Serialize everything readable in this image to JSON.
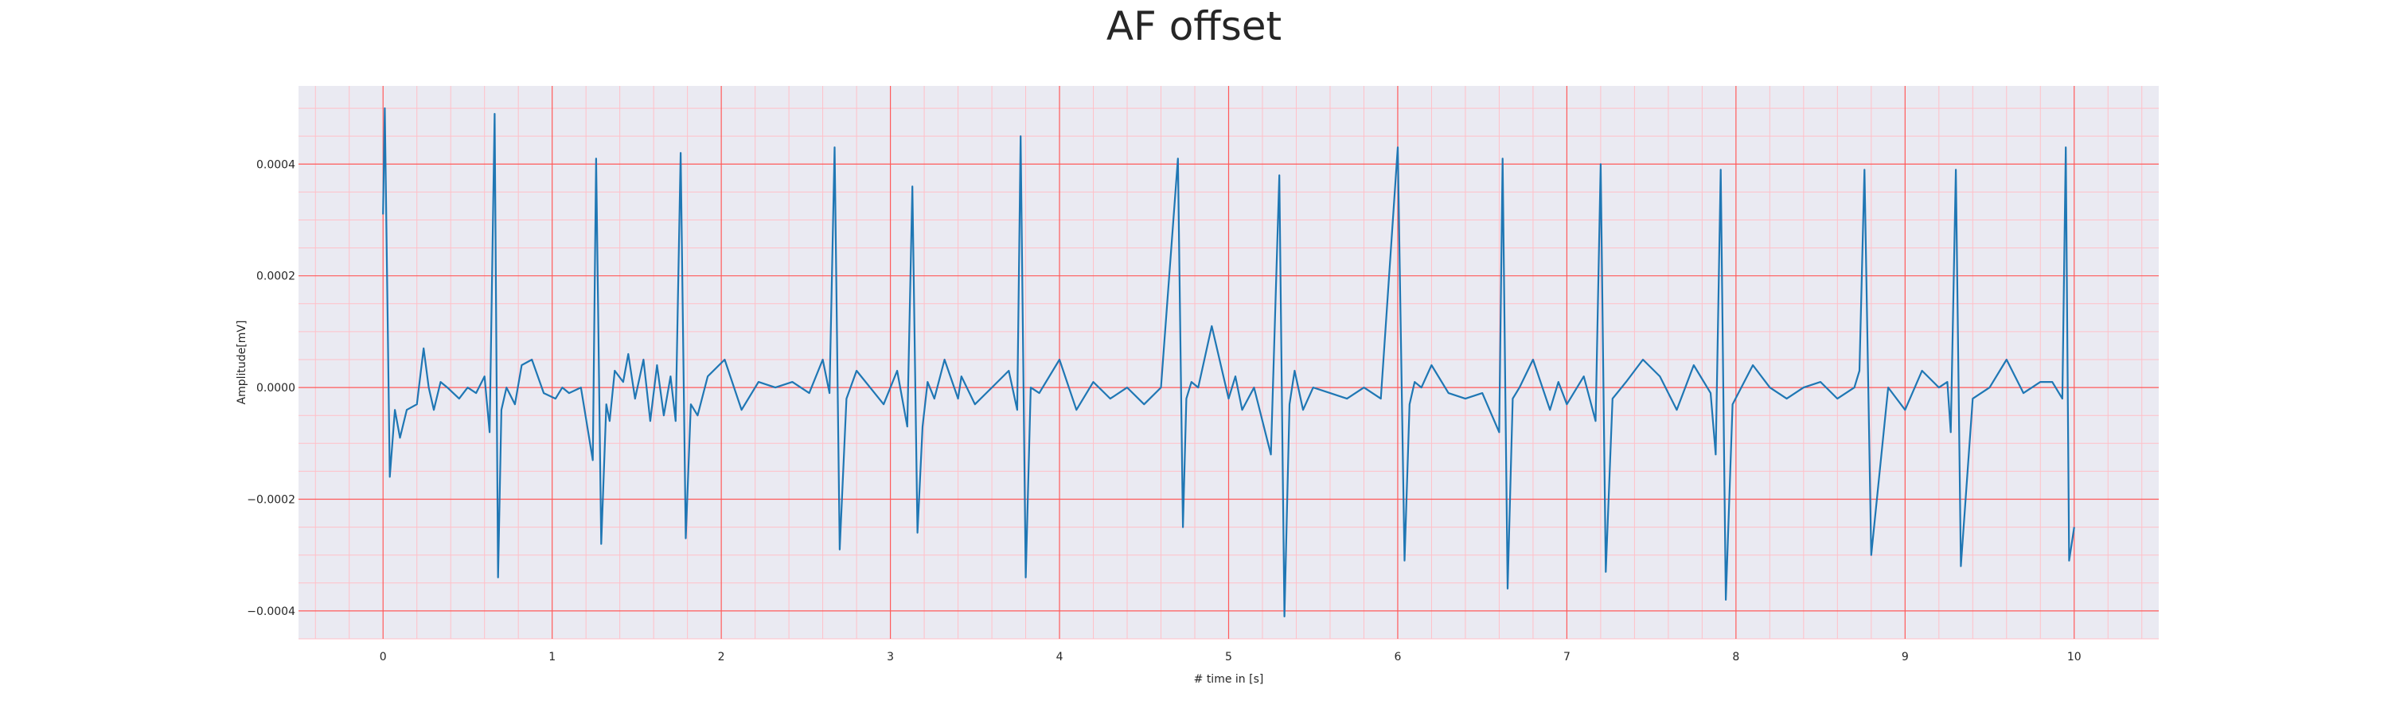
{
  "chart_data": {
    "type": "line",
    "title": "AF offset",
    "xlabel": "# time in [s]",
    "ylabel": "Amplitude[mV]",
    "xlim": [
      -0.5,
      10.5
    ],
    "ylim": [
      -0.00045,
      0.00054
    ],
    "xticks": [
      0,
      1,
      2,
      3,
      4,
      5,
      6,
      7,
      8,
      9,
      10
    ],
    "xtick_labels": [
      "0",
      "1",
      "2",
      "3",
      "4",
      "5",
      "6",
      "7",
      "8",
      "9",
      "10"
    ],
    "yticks": [
      -0.0004,
      -0.0002,
      0.0,
      0.0002,
      0.0004
    ],
    "ytick_labels": [
      "−0.0004",
      "−0.0002",
      "0.0000",
      "0.0002",
      "0.0004"
    ],
    "grid": {
      "major": true,
      "minor": true
    },
    "series": [
      {
        "x": [
          0,
          0.01,
          0.04,
          0.07,
          0.1,
          0.14,
          0.2,
          0.24,
          0.27,
          0.3,
          0.34,
          0.38,
          0.45,
          0.5,
          0.55,
          0.6,
          0.63,
          0.66,
          0.68,
          0.7,
          0.73,
          0.78,
          0.82,
          0.88,
          0.95,
          1.02,
          1.06,
          1.1,
          1.17,
          1.24,
          1.26,
          1.29,
          1.32,
          1.34,
          1.37,
          1.42,
          1.45,
          1.49,
          1.54,
          1.58,
          1.62,
          1.66,
          1.7,
          1.73,
          1.76,
          1.79,
          1.82,
          1.86,
          1.92,
          2.02,
          2.12,
          2.22,
          2.32,
          2.42,
          2.52,
          2.6,
          2.64,
          2.67,
          2.7,
          2.74,
          2.8,
          2.88,
          2.96,
          3.04,
          3.1,
          3.13,
          3.16,
          3.19,
          3.22,
          3.26,
          3.32,
          3.4,
          3.42,
          3.5,
          3.6,
          3.7,
          3.75,
          3.77,
          3.8,
          3.83,
          3.88,
          4.0,
          4.1,
          4.2,
          4.3,
          4.4,
          4.5,
          4.6,
          4.7,
          4.73,
          4.75,
          4.78,
          4.82,
          4.9,
          5.0,
          5.04,
          5.08,
          5.15,
          5.25,
          5.3,
          5.33,
          5.36,
          5.39,
          5.44,
          5.5,
          5.6,
          5.7,
          5.8,
          5.9,
          6.0,
          6.04,
          6.07,
          6.1,
          6.14,
          6.2,
          6.3,
          6.4,
          6.5,
          6.6,
          6.62,
          6.65,
          6.68,
          6.72,
          6.8,
          6.9,
          6.95,
          7.0,
          7.1,
          7.17,
          7.2,
          7.23,
          7.27,
          7.35,
          7.45,
          7.55,
          7.65,
          7.75,
          7.85,
          7.88,
          7.91,
          7.94,
          7.98,
          8.1,
          8.2,
          8.3,
          8.4,
          8.5,
          8.6,
          8.7,
          8.73,
          8.76,
          8.8,
          8.9,
          9.0,
          9.1,
          9.2,
          9.25,
          9.27,
          9.3,
          9.33,
          9.4,
          9.5,
          9.6,
          9.7,
          9.8,
          9.87,
          9.93,
          9.95,
          9.97,
          10.0
        ],
        "y": [
          0.00031,
          0.0005,
          -0.00016,
          -4e-05,
          -9e-05,
          -4e-05,
          -3e-05,
          7e-05,
          0.0,
          -4e-05,
          1e-05,
          0.0,
          -2e-05,
          0.0,
          -1e-05,
          2e-05,
          -8e-05,
          0.00049,
          -0.00034,
          -4e-05,
          0.0,
          -3e-05,
          4e-05,
          5e-05,
          -1e-05,
          -2e-05,
          0.0,
          -1e-05,
          0.0,
          -0.00013,
          0.00041,
          -0.00028,
          -3e-05,
          -6e-05,
          3e-05,
          1e-05,
          6e-05,
          -2e-05,
          5e-05,
          -6e-05,
          4e-05,
          -5e-05,
          2e-05,
          -6e-05,
          0.00042,
          -0.00027,
          -3e-05,
          -5e-05,
          2e-05,
          5e-05,
          -4e-05,
          1e-05,
          0.0,
          1e-05,
          -1e-05,
          5e-05,
          -1e-05,
          0.00043,
          -0.00029,
          -2e-05,
          3e-05,
          0.0,
          -3e-05,
          3e-05,
          -7e-05,
          0.00036,
          -0.00026,
          -7e-05,
          1e-05,
          -2e-05,
          5e-05,
          -2e-05,
          2e-05,
          -3e-05,
          0.0,
          3e-05,
          -4e-05,
          0.00045,
          -0.00034,
          0.0,
          -1e-05,
          5e-05,
          -4e-05,
          1e-05,
          -2e-05,
          0.0,
          -3e-05,
          0.0,
          0.00041,
          -0.00025,
          -2e-05,
          1e-05,
          0.0,
          0.00011,
          -2e-05,
          2e-05,
          -4e-05,
          0.0,
          -0.00012,
          0.00038,
          -0.00041,
          -3e-05,
          3e-05,
          -4e-05,
          0.0,
          -1e-05,
          -2e-05,
          0.0,
          -2e-05,
          0.00043,
          -0.00031,
          -3e-05,
          1e-05,
          0.0,
          4e-05,
          -1e-05,
          -2e-05,
          -1e-05,
          -8e-05,
          0.00041,
          -0.00036,
          -2e-05,
          0.0,
          5e-05,
          -4e-05,
          1e-05,
          -3e-05,
          2e-05,
          -6e-05,
          0.0004,
          -0.00033,
          -2e-05,
          1e-05,
          5e-05,
          2e-05,
          -4e-05,
          4e-05,
          -1e-05,
          -0.00012,
          0.00039,
          -0.00038,
          -3e-05,
          4e-05,
          0.0,
          -2e-05,
          0.0,
          1e-05,
          -2e-05,
          0.0,
          3e-05,
          0.00039,
          -0.0003,
          0.0,
          -4e-05,
          3e-05,
          0.0,
          1e-05,
          -8e-05,
          0.00039,
          -0.00032,
          -2e-05,
          0.0,
          5e-05,
          -1e-05,
          1e-05,
          1e-05,
          -2e-05,
          0.00043,
          -0.00031,
          -0.00025
        ]
      }
    ],
    "colors": {
      "line": "#1f77b4",
      "plot_background": "#eaeaf2",
      "major_grid": "#ff5a5a",
      "minor_grid": "#ffc0c8"
    }
  }
}
